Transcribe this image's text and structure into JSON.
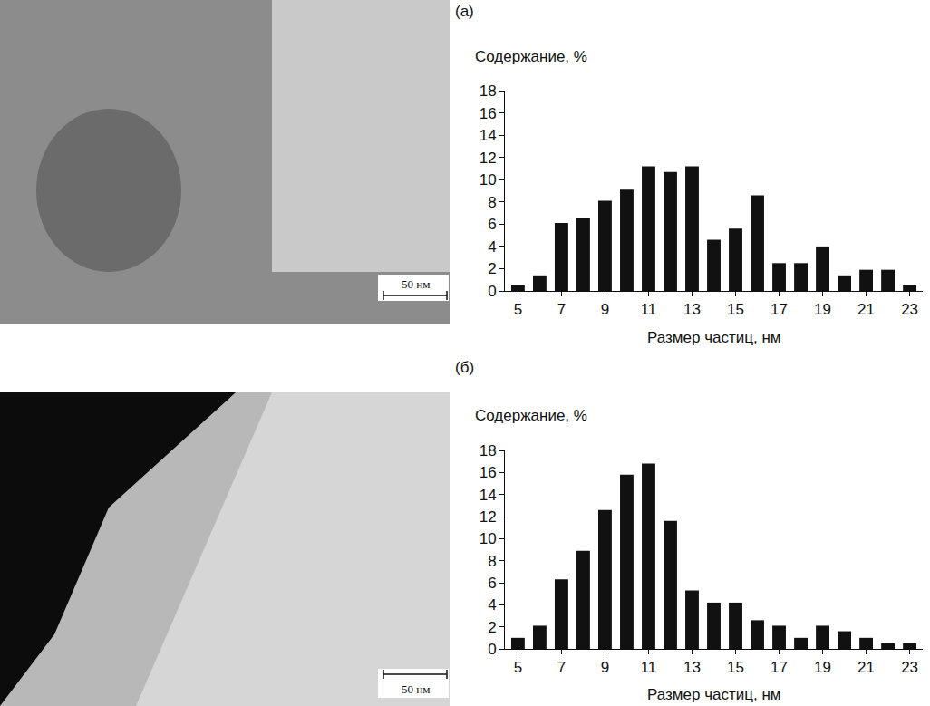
{
  "chart_data": [
    {
      "type": "bar",
      "panel_label": "(а)",
      "x_label": "Размер частиц, нм",
      "y_label": "Содержание, %",
      "x": [
        5,
        6,
        7,
        8,
        9,
        10,
        11,
        12,
        13,
        14,
        15,
        16,
        17,
        18,
        19,
        20,
        21,
        22,
        23
      ],
      "values": [
        0.5,
        1.4,
        6.1,
        6.6,
        8.1,
        9.1,
        11.2,
        10.7,
        11.2,
        4.6,
        5.6,
        8.6,
        2.5,
        2.5,
        4.0,
        1.4,
        1.9,
        1.9,
        0.5
      ],
      "color": "#111111",
      "xlim": [
        4.4,
        23.6
      ],
      "xticks": [
        5,
        7,
        9,
        11,
        13,
        15,
        17,
        19,
        21,
        23
      ],
      "ylim": [
        0,
        18
      ],
      "yticks": [
        0,
        2,
        4,
        6,
        8,
        10,
        12,
        14,
        16,
        18
      ],
      "grid": false,
      "micrograph": {
        "scale_bar": "50 нм"
      }
    },
    {
      "type": "bar",
      "panel_label": "(б)",
      "x_label": "Размер частиц, нм",
      "y_label": "Содержание, %",
      "x": [
        5,
        6,
        7,
        8,
        9,
        10,
        11,
        12,
        13,
        14,
        15,
        16,
        17,
        18,
        19,
        20,
        21,
        22,
        23
      ],
      "values": [
        1.0,
        2.1,
        6.3,
        8.9,
        12.6,
        15.8,
        16.8,
        11.6,
        5.3,
        4.2,
        4.2,
        2.6,
        2.1,
        1.0,
        2.1,
        1.6,
        1.0,
        0.5,
        0.5
      ],
      "color": "#111111",
      "xlim": [
        4.4,
        23.6
      ],
      "xticks": [
        5,
        7,
        9,
        11,
        13,
        15,
        17,
        19,
        21,
        23
      ],
      "ylim": [
        0,
        18
      ],
      "yticks": [
        0,
        2,
        4,
        6,
        8,
        10,
        12,
        14,
        16,
        18
      ],
      "grid": false,
      "micrograph": {
        "scale_bar": "50 нм"
      }
    }
  ]
}
